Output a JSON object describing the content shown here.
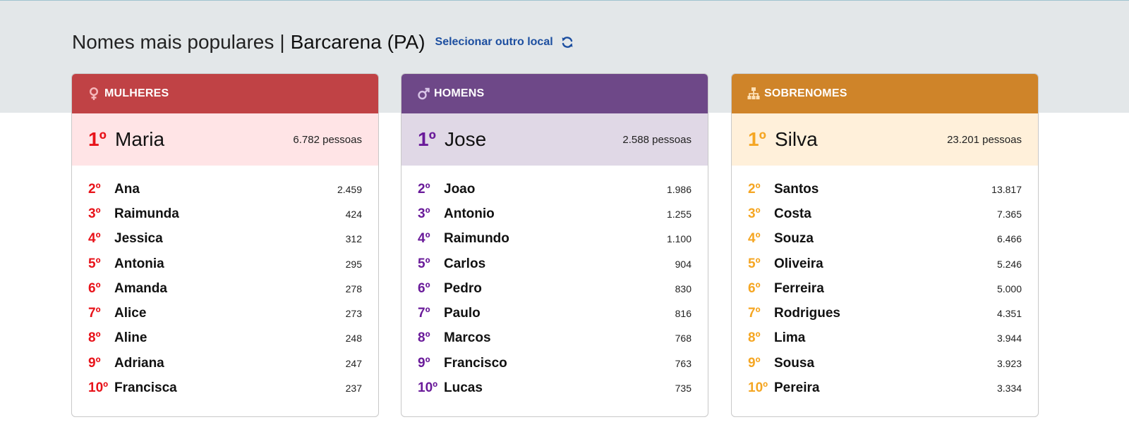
{
  "header": {
    "title": "Nomes mais populares",
    "separator": "|",
    "place": "Barcarena (PA)",
    "select_link": "Selecionar outro local",
    "select_icon": "refresh-icon",
    "link_color": "#1d4fa0"
  },
  "cards": [
    {
      "key": "women",
      "title": "MULHERES",
      "icon": "female-icon",
      "head_color": "#c04245",
      "first_bg": "#ffe4e6",
      "rank_color": "#e8131a",
      "first": {
        "rank": "1º",
        "name": "Maria",
        "count": "6.782 pessoas"
      },
      "items": [
        {
          "rank": "2º",
          "name": "Ana",
          "count": "2.459"
        },
        {
          "rank": "3º",
          "name": "Raimunda",
          "count": "424"
        },
        {
          "rank": "4º",
          "name": "Jessica",
          "count": "312"
        },
        {
          "rank": "5º",
          "name": "Antonia",
          "count": "295"
        },
        {
          "rank": "6º",
          "name": "Amanda",
          "count": "278"
        },
        {
          "rank": "7º",
          "name": "Alice",
          "count": "273"
        },
        {
          "rank": "8º",
          "name": "Aline",
          "count": "248"
        },
        {
          "rank": "9º",
          "name": "Adriana",
          "count": "247"
        },
        {
          "rank": "10º",
          "name": "Francisca",
          "count": "237"
        }
      ]
    },
    {
      "key": "men",
      "title": "HOMENS",
      "icon": "male-icon",
      "head_color": "#6e4888",
      "first_bg": "#e0d8e6",
      "rank_color": "#6a1b9a",
      "first": {
        "rank": "1º",
        "name": "Jose",
        "count": "2.588 pessoas"
      },
      "items": [
        {
          "rank": "2º",
          "name": "Joao",
          "count": "1.986"
        },
        {
          "rank": "3º",
          "name": "Antonio",
          "count": "1.255"
        },
        {
          "rank": "4º",
          "name": "Raimundo",
          "count": "1.100"
        },
        {
          "rank": "5º",
          "name": "Carlos",
          "count": "904"
        },
        {
          "rank": "6º",
          "name": "Pedro",
          "count": "830"
        },
        {
          "rank": "7º",
          "name": "Paulo",
          "count": "816"
        },
        {
          "rank": "8º",
          "name": "Marcos",
          "count": "768"
        },
        {
          "rank": "9º",
          "name": "Francisco",
          "count": "763"
        },
        {
          "rank": "10º",
          "name": "Lucas",
          "count": "735"
        }
      ]
    },
    {
      "key": "surnames",
      "title": "SOBRENOMES",
      "icon": "family-tree-icon",
      "head_color": "#cf8429",
      "first_bg": "#fff0da",
      "rank_color": "#f5a623",
      "first": {
        "rank": "1º",
        "name": "Silva",
        "count": "23.201 pessoas"
      },
      "items": [
        {
          "rank": "2º",
          "name": "Santos",
          "count": "13.817"
        },
        {
          "rank": "3º",
          "name": "Costa",
          "count": "7.365"
        },
        {
          "rank": "4º",
          "name": "Souza",
          "count": "6.466"
        },
        {
          "rank": "5º",
          "name": "Oliveira",
          "count": "5.246"
        },
        {
          "rank": "6º",
          "name": "Ferreira",
          "count": "5.000"
        },
        {
          "rank": "7º",
          "name": "Rodrigues",
          "count": "4.351"
        },
        {
          "rank": "8º",
          "name": "Lima",
          "count": "3.944"
        },
        {
          "rank": "9º",
          "name": "Sousa",
          "count": "3.923"
        },
        {
          "rank": "10º",
          "name": "Pereira",
          "count": "3.334"
        }
      ]
    }
  ]
}
